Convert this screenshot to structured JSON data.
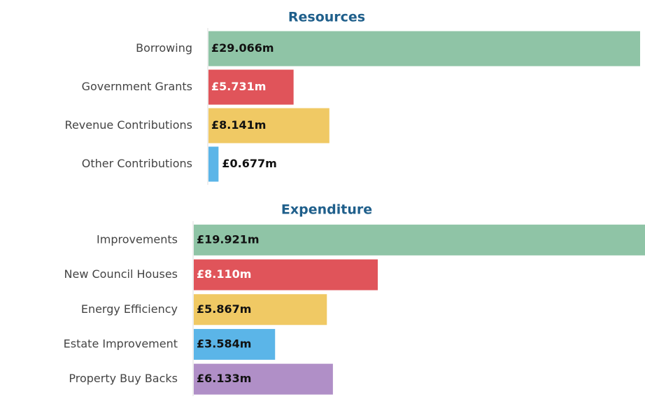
{
  "chart_data": [
    {
      "type": "hbar",
      "title": "Resources",
      "categories": [
        "Borrowing",
        "Government Grants",
        "Revenue Contributions",
        "Other Contributions"
      ],
      "values": [
        29.066,
        5.731,
        8.141,
        0.677
      ],
      "value_labels": [
        "£29.066m",
        "£5.731m",
        "£8.141m",
        "£0.677m"
      ],
      "colors": [
        "#8fc4a6",
        "#e0545a",
        "#f0c964",
        "#5bb5e8"
      ]
    },
    {
      "type": "hbar",
      "title": "Expenditure",
      "categories": [
        "Improvements",
        "New Council Houses",
        "Energy Efficiency",
        "Estate Improvement",
        "Property Buy Backs"
      ],
      "values": [
        19.921,
        8.11,
        5.867,
        3.584,
        6.133
      ],
      "value_labels": [
        "£19.921m",
        "£8.110m",
        "£5.867m",
        "£3.584m",
        "£6.133m"
      ],
      "colors": [
        "#8fc4a6",
        "#e0545a",
        "#f0c964",
        "#5bb5e8",
        "#b08fc7"
      ]
    }
  ]
}
